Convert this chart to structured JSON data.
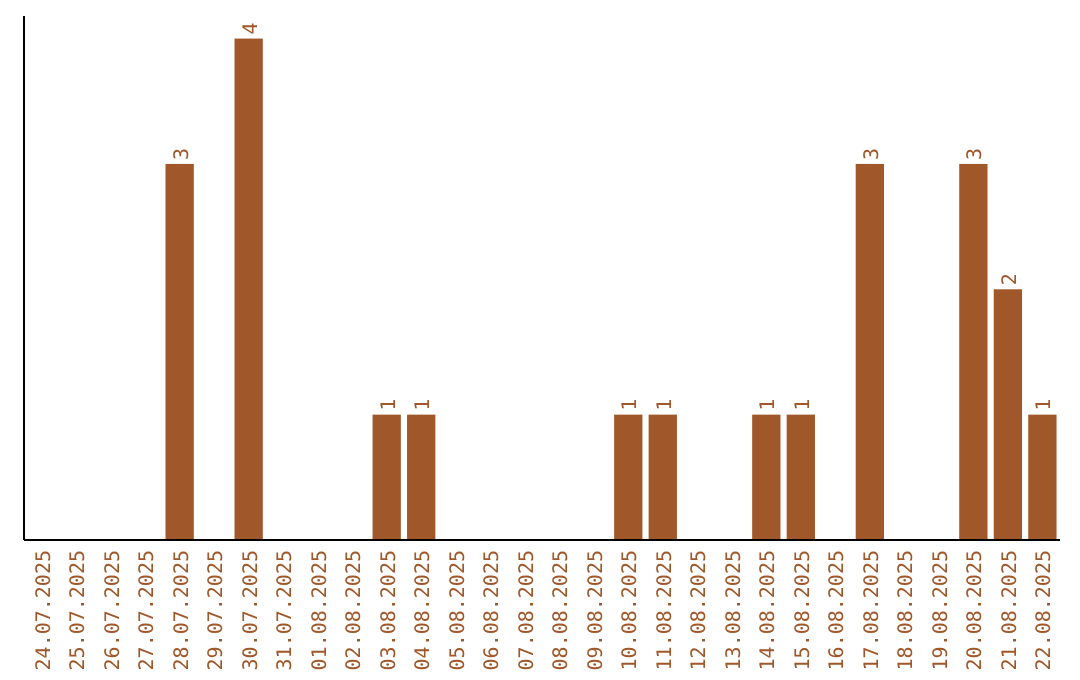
{
  "chart_data": {
    "type": "bar",
    "categories": [
      "24.07.2025",
      "25.07.2025",
      "26.07.2025",
      "27.07.2025",
      "28.07.2025",
      "29.07.2025",
      "30.07.2025",
      "31.07.2025",
      "01.08.2025",
      "02.08.2025",
      "03.08.2025",
      "04.08.2025",
      "05.08.2025",
      "06.08.2025",
      "07.08.2025",
      "08.08.2025",
      "09.08.2025",
      "10.08.2025",
      "11.08.2025",
      "12.08.2025",
      "13.08.2025",
      "14.08.2025",
      "15.08.2025",
      "16.08.2025",
      "17.08.2025",
      "18.08.2025",
      "19.08.2025",
      "20.08.2025",
      "21.08.2025",
      "22.08.2025"
    ],
    "values": [
      0,
      0,
      0,
      0,
      3,
      0,
      4,
      0,
      0,
      0,
      1,
      1,
      0,
      0,
      0,
      0,
      0,
      1,
      1,
      0,
      0,
      1,
      1,
      0,
      3,
      0,
      0,
      3,
      2,
      1
    ],
    "value_labels": [
      null,
      null,
      null,
      null,
      "3",
      null,
      "4",
      null,
      null,
      null,
      "1",
      "1",
      null,
      null,
      null,
      null,
      null,
      "1",
      "1",
      null,
      null,
      "1",
      "1",
      null,
      "3",
      null,
      null,
      "3",
      "2",
      "1"
    ],
    "color": "#a0582a"
  }
}
